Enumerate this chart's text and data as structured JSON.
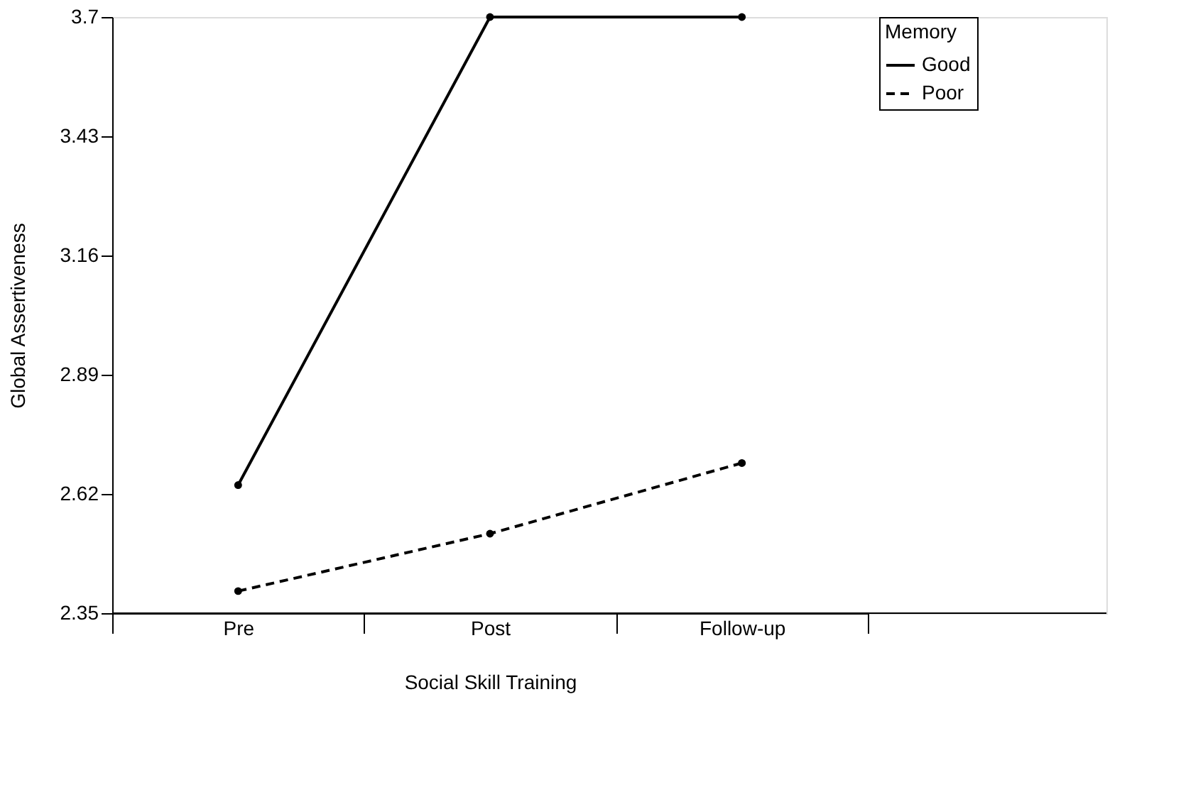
{
  "chart_data": {
    "type": "line",
    "xlabel": "Social Skill Training",
    "ylabel": "Global Assertiveness",
    "legend_title": "Memory",
    "categories": [
      "Pre",
      "Post",
      "Follow-up"
    ],
    "series": [
      {
        "name": "Good",
        "color": "#000000",
        "line_style": "solid",
        "values": [
          2.64,
          3.7,
          3.7
        ]
      },
      {
        "name": "Poor",
        "color": "#000000",
        "line_style": "dashed",
        "values": [
          2.4,
          2.53,
          2.69
        ]
      }
    ],
    "ylim": [
      2.35,
      3.7
    ],
    "yticks": [
      2.35,
      2.62,
      2.89,
      3.16,
      3.43,
      3.7
    ],
    "grid": false,
    "legend": "right",
    "marker": "circle"
  }
}
